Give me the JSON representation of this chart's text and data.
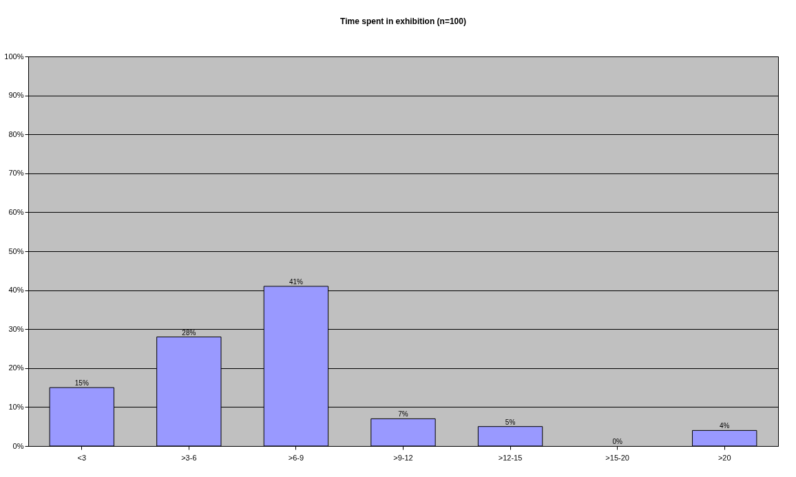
{
  "chart_data": {
    "type": "bar",
    "title": "Time spent in exhibition (n=100)",
    "categories": [
      "<3",
      ">3-6",
      ">6-9",
      ">9-12",
      ">12-15",
      ">15-20",
      ">20"
    ],
    "values": [
      15,
      28,
      41,
      7,
      5,
      0,
      4
    ],
    "value_labels": [
      "15%",
      "28%",
      "41%",
      "7%",
      "5%",
      "0%",
      "4%"
    ],
    "color": "#9999ff",
    "ylim": [
      0,
      100
    ],
    "yticks": [
      {
        "value": 0,
        "label": "0%"
      },
      {
        "value": 10,
        "label": "10%"
      },
      {
        "value": 20,
        "label": "20%"
      },
      {
        "value": 30,
        "label": "30%"
      },
      {
        "value": 40,
        "label": "40%"
      },
      {
        "value": 50,
        "label": "50%"
      },
      {
        "value": 60,
        "label": "60%"
      },
      {
        "value": 70,
        "label": "70%"
      },
      {
        "value": 80,
        "label": "80%"
      },
      {
        "value": 90,
        "label": "90%"
      },
      {
        "value": 100,
        "label": "100%"
      }
    ],
    "grid": "y"
  }
}
